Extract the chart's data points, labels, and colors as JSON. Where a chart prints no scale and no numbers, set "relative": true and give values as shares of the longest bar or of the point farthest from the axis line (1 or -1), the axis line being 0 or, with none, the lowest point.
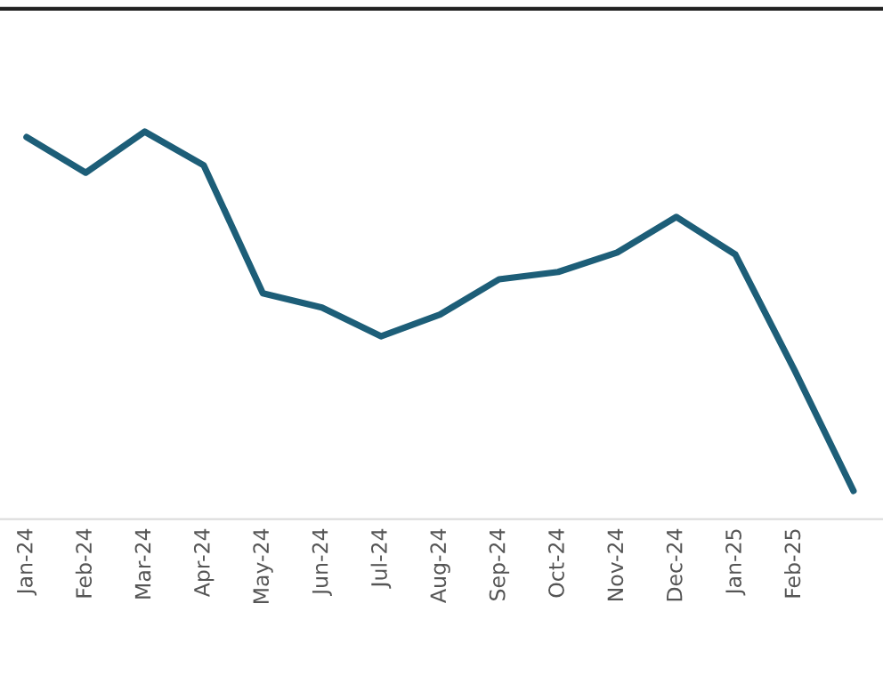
{
  "chart_data": {
    "type": "line",
    "relative": true,
    "categories": [
      "Jan-24",
      "Feb-24",
      "Mar-24",
      "Apr-24",
      "May-24",
      "Jun-24",
      "Jul-24",
      "Aug-24",
      "Sep-24",
      "Oct-24",
      "Nov-24",
      "Dec-24",
      "Jan-25",
      "Feb-25",
      null
    ],
    "series": [
      {
        "color": "#1d5e78",
        "values": [
          0.986,
          0.894,
          1,
          0.913,
          0.583,
          0.546,
          0.472,
          0.528,
          0.619,
          0.638,
          0.688,
          0.78,
          0.683,
          0.385,
          0.073
        ]
      }
    ],
    "grid": false,
    "marker": "none",
    "line_style": "solid",
    "tick_labels": "x"
  }
}
